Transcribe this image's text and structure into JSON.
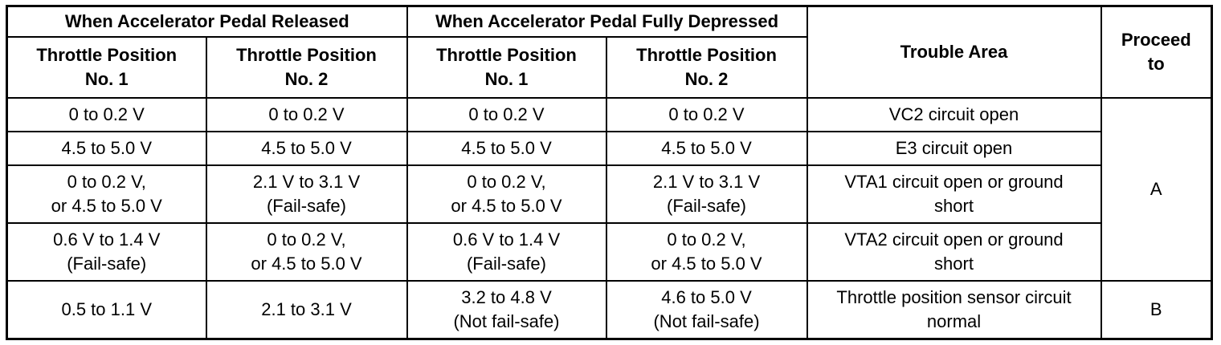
{
  "table": {
    "group_headers": {
      "released": "When Accelerator Pedal Released",
      "depressed": "When Accelerator Pedal Fully Depressed",
      "trouble_area": "Trouble Area",
      "proceed_to": [
        "Proceed",
        "to"
      ]
    },
    "sub_headers": {
      "released_tp1": [
        "Throttle Position",
        "No. 1"
      ],
      "released_tp2": [
        "Throttle Position",
        "No. 2"
      ],
      "depressed_tp1": [
        "Throttle Position",
        "No. 1"
      ],
      "depressed_tp2": [
        "Throttle Position",
        "No. 2"
      ]
    },
    "rows": [
      {
        "released_tp1": [
          "0 to 0.2 V"
        ],
        "released_tp2": [
          "0 to 0.2 V"
        ],
        "depressed_tp1": [
          "0 to 0.2 V"
        ],
        "depressed_tp2": [
          "0 to 0.2 V"
        ],
        "trouble_area": [
          "VC2 circuit open"
        ]
      },
      {
        "released_tp1": [
          "4.5 to 5.0 V"
        ],
        "released_tp2": [
          "4.5 to 5.0 V"
        ],
        "depressed_tp1": [
          "4.5 to 5.0 V"
        ],
        "depressed_tp2": [
          "4.5 to 5.0 V"
        ],
        "trouble_area": [
          "E3 circuit open"
        ]
      },
      {
        "released_tp1": [
          "0 to 0.2 V,",
          "or 4.5 to 5.0 V"
        ],
        "released_tp2": [
          "2.1 V to 3.1 V",
          "(Fail-safe)"
        ],
        "depressed_tp1": [
          "0 to 0.2 V,",
          "or 4.5 to 5.0 V"
        ],
        "depressed_tp2": [
          "2.1 V to 3.1 V",
          "(Fail-safe)"
        ],
        "trouble_area": [
          "VTA1 circuit open or ground",
          "short"
        ]
      },
      {
        "released_tp1": [
          "0.6 V to 1.4 V",
          "(Fail-safe)"
        ],
        "released_tp2": [
          "0 to 0.2 V,",
          "or 4.5 to 5.0 V"
        ],
        "depressed_tp1": [
          "0.6 V to 1.4 V",
          "(Fail-safe)"
        ],
        "depressed_tp2": [
          "0 to 0.2 V,",
          "or 4.5 to 5.0 V"
        ],
        "trouble_area": [
          "VTA2 circuit open or ground",
          "short"
        ]
      },
      {
        "released_tp1": [
          "0.5 to 1.1 V"
        ],
        "released_tp2": [
          "2.1 to 3.1 V"
        ],
        "depressed_tp1": [
          "3.2 to 4.8 V",
          "(Not fail-safe)"
        ],
        "depressed_tp2": [
          "4.6 to 5.0 V",
          "(Not fail-safe)"
        ],
        "trouble_area": [
          "Throttle position sensor circuit",
          "normal"
        ]
      }
    ],
    "proceed_groups": {
      "a": "A",
      "b": "B"
    }
  },
  "colors": {
    "text": "#000000",
    "border": "#000000",
    "background": "#ffffff"
  }
}
